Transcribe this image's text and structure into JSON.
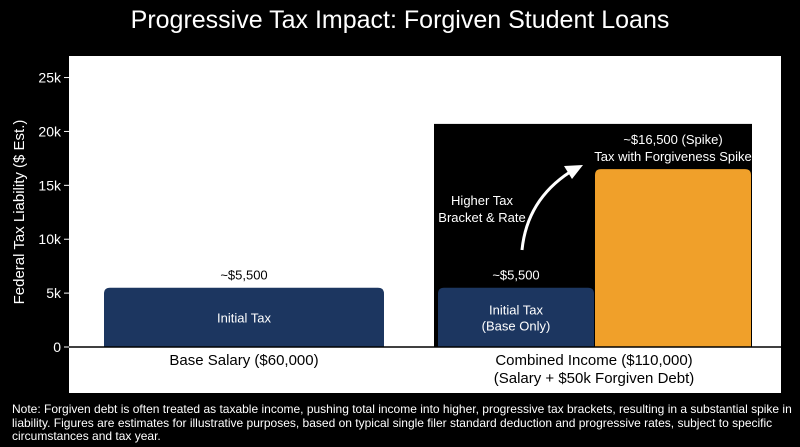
{
  "title": "Progressive Tax Impact: Forgiven Student Loans",
  "note": "Note: Forgiven debt is often treated as taxable income, pushing total income into higher, progressive tax brackets, resulting in a substantial spike in liability. Figures are estimates for illustrative purposes, based on typical single filer standard deduction and progressive rates, subject to specific circumstances and tax year.",
  "colors": {
    "background": "#000000",
    "plot_area": "#ffffff",
    "initial_tax": "#1c3660",
    "spike": "#f0a02a",
    "highlight_box": "#000000"
  },
  "chart_data": {
    "type": "bar",
    "ylabel": "Federal Tax Liability ($ Est.)",
    "ylim": [
      0,
      27000
    ],
    "yticks": [
      0,
      5000,
      10000,
      15000,
      20000,
      25000
    ],
    "ytick_labels": [
      "0",
      "5k",
      "10k",
      "15k",
      "20k",
      "25k"
    ],
    "grid": false,
    "categories": [
      {
        "label": "Base Salary ($60,000)",
        "sublabel": ""
      },
      {
        "label": "Combined Income ($110,000)",
        "sublabel": "(Salary + $50k Forgiven Debt)"
      }
    ],
    "bars": [
      {
        "category": 0,
        "value": 5500,
        "fill": "#1c3660",
        "inner_label": [
          "Initial Tax"
        ],
        "top_label": [
          "~$5,500"
        ]
      },
      {
        "category": 1,
        "value": 5500,
        "fill": "#1c3660",
        "inner_label": [
          "Initial Tax",
          "(Base Only)"
        ],
        "top_label": [
          "~$5,500"
        ]
      },
      {
        "category": 1,
        "value": 16500,
        "fill": "#f0a02a",
        "inner_label": [],
        "top_label": [
          "~$16,500 (Spike)",
          "Tax with Forgiveness Spike"
        ]
      }
    ],
    "highlight_box_top": 20700,
    "annotation": {
      "text": [
        "Higher Tax",
        "Bracket & Rate"
      ],
      "arrow": true
    }
  }
}
